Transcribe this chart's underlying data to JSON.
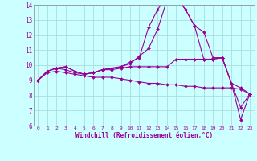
{
  "xlabel": "Windchill (Refroidissement éolien,°C)",
  "x": [
    0,
    1,
    2,
    3,
    4,
    5,
    6,
    7,
    8,
    9,
    10,
    11,
    12,
    13,
    14,
    15,
    16,
    17,
    18,
    19,
    20,
    21,
    22,
    23
  ],
  "series": [
    [
      9.0,
      9.6,
      9.8,
      9.9,
      9.6,
      9.4,
      9.5,
      9.7,
      9.8,
      9.9,
      10.2,
      10.5,
      12.5,
      13.7,
      14.5,
      14.5,
      13.7,
      12.6,
      12.2,
      10.5,
      10.5,
      8.8,
      6.4,
      8.1
    ],
    [
      9.0,
      9.6,
      9.8,
      9.9,
      9.6,
      9.4,
      9.5,
      9.7,
      9.8,
      9.9,
      10.1,
      10.6,
      11.1,
      12.4,
      14.3,
      14.5,
      13.7,
      12.6,
      10.4,
      10.4,
      10.5,
      8.8,
      7.2,
      8.1
    ],
    [
      9.0,
      9.6,
      9.8,
      9.7,
      9.5,
      9.4,
      9.5,
      9.7,
      9.7,
      9.8,
      9.9,
      9.9,
      9.9,
      9.9,
      9.9,
      10.4,
      10.4,
      10.4,
      10.4,
      10.4,
      10.5,
      8.8,
      8.5,
      8.1
    ],
    [
      9.0,
      9.5,
      9.6,
      9.5,
      9.4,
      9.3,
      9.2,
      9.2,
      9.2,
      9.1,
      9.0,
      8.9,
      8.8,
      8.8,
      8.7,
      8.7,
      8.6,
      8.6,
      8.5,
      8.5,
      8.5,
      8.5,
      8.4,
      8.1
    ]
  ],
  "line_color": "#990099",
  "bg_color": "#ccffff",
  "grid_color": "#aadddd",
  "ylim": [
    6,
    14
  ],
  "yticks": [
    6,
    7,
    8,
    9,
    10,
    11,
    12,
    13,
    14
  ],
  "xlim_min": -0.5,
  "xlim_max": 23.5
}
